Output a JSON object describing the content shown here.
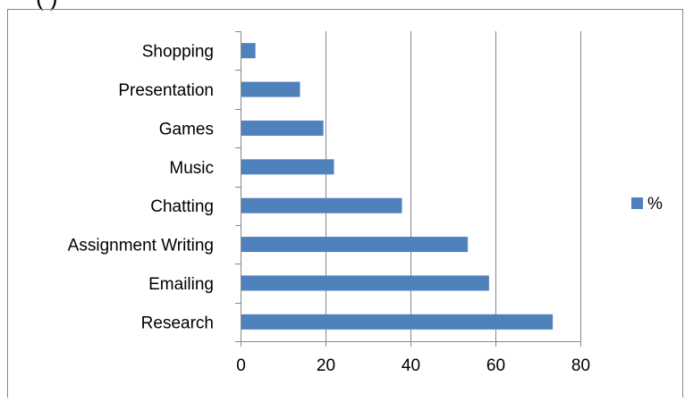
{
  "header_fragment": "(            )",
  "chart_data": {
    "type": "bar",
    "orientation": "horizontal",
    "categories": [
      "Research",
      "Emailing",
      "Assignment Writing",
      "Chatting",
      "Music",
      "Games",
      "Presentation",
      "Shopping"
    ],
    "series": [
      {
        "name": "%",
        "values": [
          73.5,
          58.5,
          53.5,
          38,
          22,
          19.5,
          14,
          3.5
        ]
      }
    ],
    "xlim": [
      0,
      80
    ],
    "xticks": [
      0,
      20,
      40,
      60,
      80
    ],
    "grid": true,
    "legend": "right",
    "colors": {
      "bar": "#4F81BD",
      "grid": "#868686",
      "frame": "#868686"
    }
  }
}
